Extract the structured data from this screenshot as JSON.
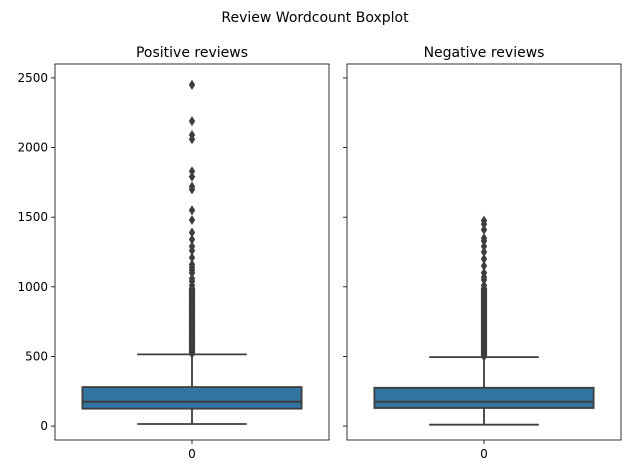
{
  "chart_data": {
    "type": "box",
    "title": "Review Wordcount Boxplot",
    "ylim": [
      -100,
      2600
    ],
    "yticks": [
      0,
      500,
      1000,
      1500,
      2000,
      2500
    ],
    "shared_y": true,
    "grid": false,
    "box_color": "#3274a1",
    "edge_color": "#3d3d3d",
    "panels": [
      {
        "title": "Positive reviews",
        "xtick": "0",
        "whisker_low": 15,
        "q1": 125,
        "median": 175,
        "q3": 280,
        "whisker_high": 515,
        "outliers_dense_range": [
          520,
          990
        ],
        "outliers": [
          1010,
          1040,
          1060,
          1100,
          1120,
          1140,
          1160,
          1210,
          1260,
          1290,
          1340,
          1390,
          1480,
          1550,
          1700,
          1720,
          1790,
          1830,
          2060,
          2090,
          2190,
          2450
        ]
      },
      {
        "title": "Negative reviews",
        "xtick": "0",
        "whisker_low": 10,
        "q1": 130,
        "median": 175,
        "q3": 275,
        "whisker_high": 495,
        "outliers_dense_range": [
          500,
          990
        ],
        "outliers": [
          1010,
          1050,
          1070,
          1100,
          1150,
          1200,
          1250,
          1290,
          1330,
          1350,
          1410,
          1450,
          1475
        ]
      }
    ]
  }
}
